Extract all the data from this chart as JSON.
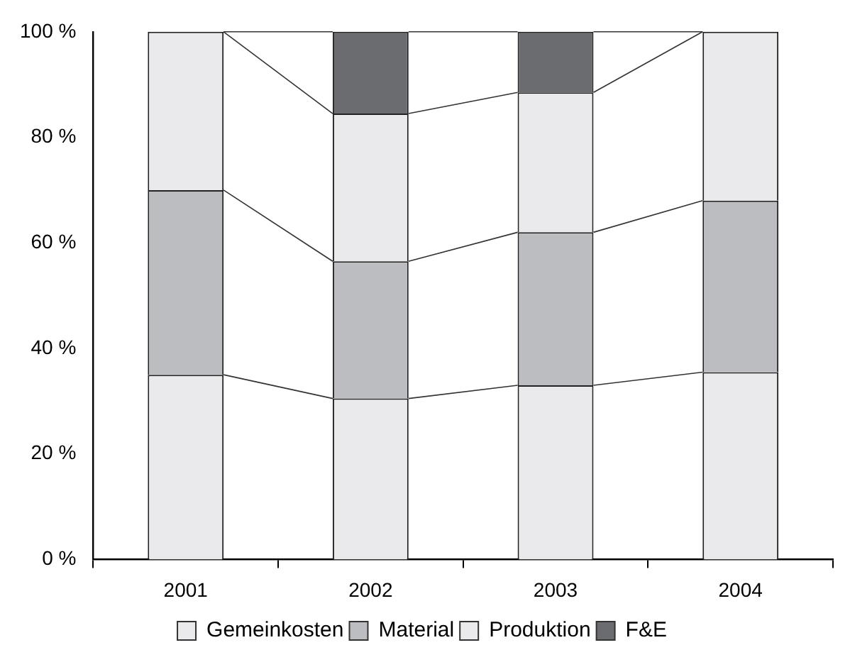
{
  "chart_data": {
    "type": "bar",
    "stacked": true,
    "categories": [
      "2001",
      "2002",
      "2003",
      "2004"
    ],
    "series": [
      {
        "name": "Gemeinkosten",
        "color": "#eaeaec",
        "values": [
          35,
          30.5,
          33,
          35.5
        ]
      },
      {
        "name": "Material",
        "color": "#bcbdc1",
        "values": [
          35,
          26,
          29,
          32.5
        ]
      },
      {
        "name": "Produktion",
        "color": "#eaeaec",
        "values": [
          30,
          28,
          26.5,
          32
        ]
      },
      {
        "name": "F&E",
        "color": "#6b6c70",
        "values": [
          0,
          15.5,
          11.5,
          0
        ]
      }
    ],
    "ylim": [
      0,
      100
    ],
    "yticks": [
      {
        "value": 0,
        "label": "0 %"
      },
      {
        "value": 20,
        "label": "20 %"
      },
      {
        "value": 40,
        "label": "40 %"
      },
      {
        "value": 60,
        "label": "60 %"
      },
      {
        "value": 80,
        "label": "80 %"
      },
      {
        "value": 100,
        "label": "100 %"
      }
    ],
    "grid": false,
    "legend": "bottom"
  }
}
